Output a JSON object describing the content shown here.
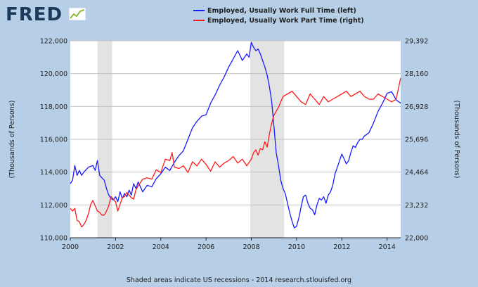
{
  "logo": {
    "text": "FRED"
  },
  "footer": {
    "note": "Shaded areas indicate US recessions - 2014 research.stlouisfed.org"
  },
  "chart_data": {
    "type": "line",
    "left_axis_label": "(Thousands of Persons)",
    "right_axis_label": "(Thousands of Persons)",
    "xlim": [
      2000.0,
      2014.6
    ],
    "ylim_left": [
      110000,
      122000
    ],
    "ylim_right": [
      22000,
      29392
    ],
    "x_ticks": [
      {
        "value": 2000,
        "label": "2000"
      },
      {
        "value": 2002,
        "label": "2002"
      },
      {
        "value": 2004,
        "label": "2004"
      },
      {
        "value": 2006,
        "label": "2006"
      },
      {
        "value": 2008,
        "label": "2008"
      },
      {
        "value": 2010,
        "label": "2010"
      },
      {
        "value": 2012,
        "label": "2012"
      },
      {
        "value": 2014,
        "label": "2014"
      }
    ],
    "y_ticks_left": [
      {
        "value": 110000,
        "label": "110,000"
      },
      {
        "value": 112000,
        "label": "112,000"
      },
      {
        "value": 114000,
        "label": "114,000"
      },
      {
        "value": 116000,
        "label": "116,000"
      },
      {
        "value": 118000,
        "label": "118,000"
      },
      {
        "value": 120000,
        "label": "120,000"
      },
      {
        "value": 122000,
        "label": "122,000"
      }
    ],
    "y_ticks_right": [
      {
        "value": 22000,
        "label": "22,000"
      },
      {
        "value": 23232,
        "label": "23,232"
      },
      {
        "value": 24464,
        "label": "24,464"
      },
      {
        "value": 25696,
        "label": "25,696"
      },
      {
        "value": 26928,
        "label": "26,928"
      },
      {
        "value": 28160,
        "label": "28,160"
      },
      {
        "value": 29392,
        "label": "29,392"
      }
    ],
    "recessions": [
      [
        2001.2,
        2001.85
      ],
      [
        2007.95,
        2009.45
      ]
    ],
    "series": [
      {
        "name": "Employed, Usually Work Full Time (left)",
        "axis": "left",
        "color": "#1a1aff",
        "x": [
          2000.0,
          2000.1,
          2000.2,
          2000.3,
          2000.4,
          2000.5,
          2000.6,
          2000.8,
          2001.0,
          2001.1,
          2001.2,
          2001.3,
          2001.5,
          2001.6,
          2001.7,
          2001.8,
          2001.9,
          2002.0,
          2002.1,
          2002.2,
          2002.3,
          2002.4,
          2002.5,
          2002.6,
          2002.7,
          2002.8,
          2002.9,
          2003.0,
          2003.2,
          2003.4,
          2003.6,
          2003.8,
          2004.0,
          2004.2,
          2004.4,
          2004.6,
          2004.8,
          2005.0,
          2005.2,
          2005.4,
          2005.6,
          2005.8,
          2006.0,
          2006.2,
          2006.4,
          2006.6,
          2006.8,
          2007.0,
          2007.2,
          2007.4,
          2007.6,
          2007.8,
          2007.9,
          2008.0,
          2008.1,
          2008.2,
          2008.3,
          2008.4,
          2008.5,
          2008.6,
          2008.7,
          2008.8,
          2008.9,
          2009.0,
          2009.1,
          2009.2,
          2009.3,
          2009.4,
          2009.5,
          2009.6,
          2009.7,
          2009.8,
          2009.9,
          2010.0,
          2010.1,
          2010.2,
          2010.3,
          2010.4,
          2010.5,
          2010.6,
          2010.7,
          2010.8,
          2010.9,
          2011.0,
          2011.1,
          2011.2,
          2011.3,
          2011.4,
          2011.5,
          2011.6,
          2011.7,
          2011.8,
          2011.9,
          2012.0,
          2012.1,
          2012.2,
          2012.3,
          2012.4,
          2012.5,
          2012.6,
          2012.7,
          2012.8,
          2012.9,
          2013.0,
          2013.2,
          2013.4,
          2013.6,
          2013.8,
          2014.0,
          2014.2,
          2014.4,
          2014.6
        ],
        "values": [
          113300,
          113500,
          114400,
          113800,
          114100,
          113800,
          114000,
          114300,
          114400,
          114100,
          114700,
          113800,
          113500,
          113000,
          112600,
          112400,
          112300,
          112500,
          112200,
          112800,
          112400,
          112700,
          112500,
          112900,
          112600,
          113300,
          113000,
          113400,
          112800,
          113200,
          113100,
          113600,
          113900,
          114300,
          114100,
          114600,
          115000,
          115300,
          116000,
          116700,
          117100,
          117400,
          117500,
          118200,
          118700,
          119300,
          119800,
          120400,
          120900,
          121400,
          120800,
          121200,
          121000,
          121900,
          121600,
          121400,
          121500,
          121200,
          120800,
          120400,
          119900,
          119200,
          118300,
          116800,
          115200,
          114400,
          113500,
          113000,
          112700,
          112100,
          111500,
          111000,
          110600,
          110700,
          111200,
          111900,
          112500,
          112600,
          112100,
          111800,
          111700,
          111400,
          112000,
          112400,
          112300,
          112500,
          112100,
          112600,
          112800,
          113200,
          113900,
          114300,
          114700,
          115100,
          114800,
          114500,
          114700,
          115200,
          115600,
          115500,
          115800,
          116000,
          116000,
          116200,
          116400,
          117000,
          117700,
          118200,
          118800,
          118900,
          118400,
          118200
        ]
      },
      {
        "name": "Employed, Usually Work Part Time (right)",
        "axis": "right",
        "color": "#ff1a1a",
        "x": [
          2000.0,
          2000.1,
          2000.2,
          2000.3,
          2000.4,
          2000.5,
          2000.6,
          2000.7,
          2000.8,
          2000.9,
          2001.0,
          2001.1,
          2001.2,
          2001.3,
          2001.4,
          2001.5,
          2001.6,
          2001.7,
          2001.8,
          2001.9,
          2002.0,
          2002.1,
          2002.2,
          2002.3,
          2002.4,
          2002.5,
          2002.6,
          2002.7,
          2002.8,
          2002.9,
          2003.0,
          2003.2,
          2003.4,
          2003.6,
          2003.8,
          2004.0,
          2004.2,
          2004.4,
          2004.5,
          2004.6,
          2004.8,
          2005.0,
          2005.2,
          2005.4,
          2005.6,
          2005.8,
          2006.0,
          2006.2,
          2006.4,
          2006.6,
          2006.8,
          2007.0,
          2007.2,
          2007.4,
          2007.6,
          2007.8,
          2008.0,
          2008.1,
          2008.2,
          2008.3,
          2008.4,
          2008.5,
          2008.6,
          2008.7,
          2008.8,
          2008.9,
          2009.0,
          2009.2,
          2009.4,
          2009.6,
          2009.8,
          2010.0,
          2010.2,
          2010.4,
          2010.6,
          2010.8,
          2011.0,
          2011.2,
          2011.4,
          2011.6,
          2011.8,
          2012.0,
          2012.2,
          2012.4,
          2012.6,
          2012.8,
          2013.0,
          2013.2,
          2013.4,
          2013.6,
          2013.8,
          2014.0,
          2014.2,
          2014.4,
          2014.6
        ],
        "values": [
          23100,
          23000,
          23100,
          22650,
          22600,
          22400,
          22500,
          22650,
          22900,
          23250,
          23400,
          23200,
          23000,
          22950,
          22850,
          22850,
          23000,
          23200,
          23550,
          23450,
          23350,
          23000,
          23250,
          23500,
          23550,
          23700,
          23600,
          23500,
          23450,
          23800,
          23950,
          24200,
          24250,
          24200,
          24550,
          24450,
          24950,
          24900,
          25200,
          24650,
          24600,
          24700,
          24450,
          24850,
          24700,
          24950,
          24750,
          24500,
          24850,
          24650,
          24800,
          24900,
          25050,
          24800,
          24950,
          24700,
          24950,
          25200,
          25300,
          25100,
          25350,
          25300,
          25600,
          25400,
          25900,
          26300,
          26600,
          26900,
          27300,
          27400,
          27500,
          27300,
          27100,
          27000,
          27400,
          27200,
          27000,
          27300,
          27100,
          27200,
          27300,
          27400,
          27500,
          27300,
          27400,
          27500,
          27300,
          27200,
          27200,
          27400,
          27300,
          27200,
          27100,
          27200,
          28000
        ]
      }
    ]
  }
}
